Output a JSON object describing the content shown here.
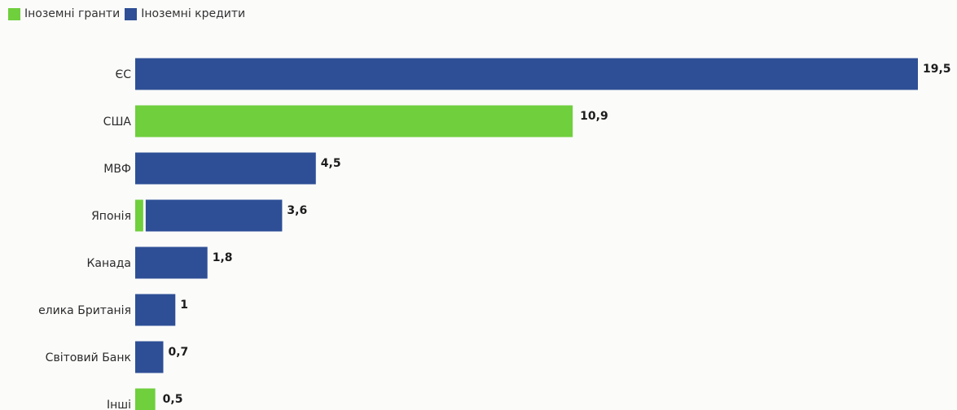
{
  "chart_data": {
    "type": "bar",
    "orientation": "horizontal",
    "stacked": true,
    "title": "",
    "xlabel": "",
    "ylabel": "",
    "xlim": [
      0,
      19.5
    ],
    "grid": false,
    "legend_position": "top-left",
    "categories": [
      "ЄС",
      "США",
      "МВФ",
      "Японія",
      "Канада",
      "елика Британія",
      "Світовий Банк",
      "Інші"
    ],
    "series": [
      {
        "name": "Іноземні гранти",
        "color": "#6fcf3d",
        "values": [
          0,
          10.9,
          0,
          0.2,
          0,
          0,
          0,
          0.5
        ]
      },
      {
        "name": "Іноземні кредити",
        "color": "#2e4f96",
        "values": [
          19.5,
          0,
          4.5,
          3.4,
          1.8,
          1,
          0.7,
          0
        ]
      }
    ],
    "total_labels": [
      "19,5",
      "10,9",
      "4,5",
      "3,6",
      "1,8",
      "1",
      "0,7",
      "0,5"
    ]
  }
}
